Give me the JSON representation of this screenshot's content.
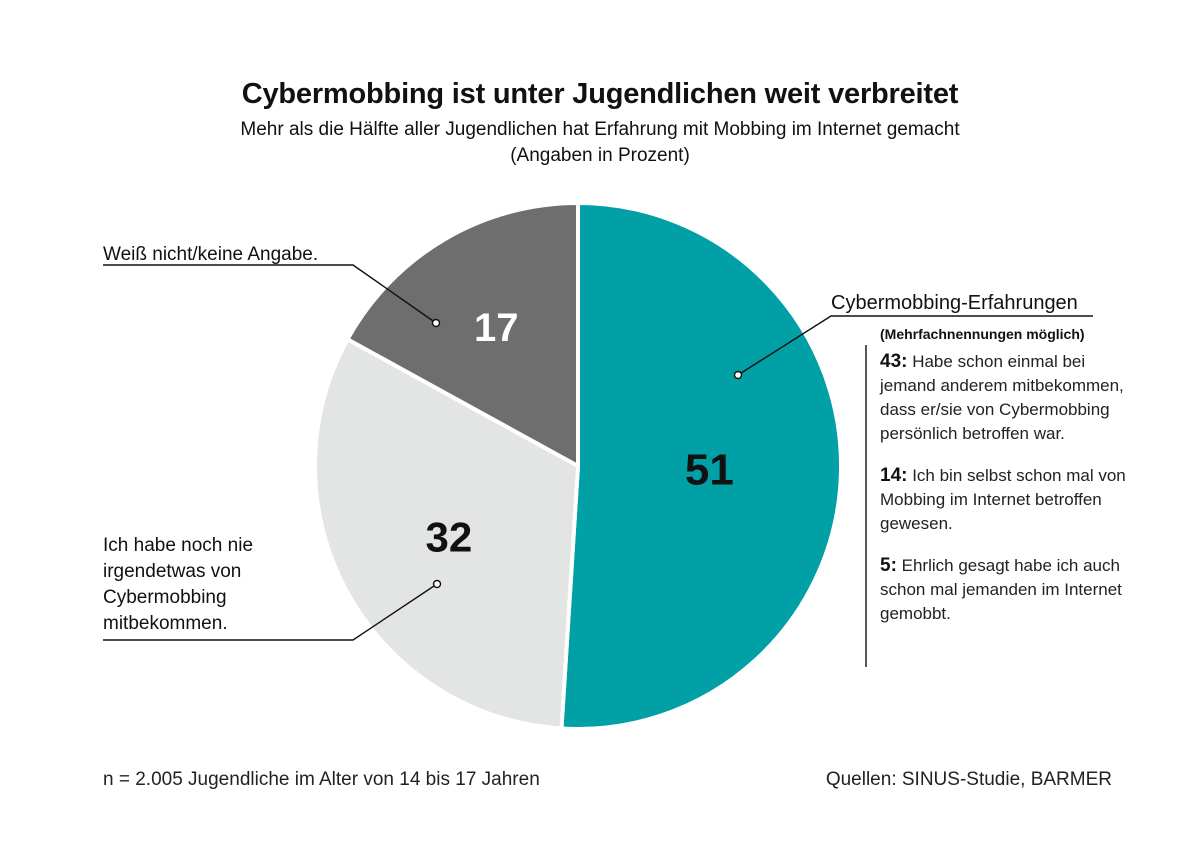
{
  "header": {
    "title": "Cybermobbing ist unter Jugendlichen weit verbreitet",
    "subtitle": "Mehr als die Hälfte aller Jugendlichen hat Erfahrung mit Mobbing im Internet gemacht",
    "unit_note": "(Angaben in Prozent)"
  },
  "chart_data": {
    "type": "pie",
    "title": "Cybermobbing ist unter Jugendlichen weit verbreitet",
    "subtitle": "Mehr als die Hälfte aller Jugendlichen hat Erfahrung mit Mobbing im Internet gemacht",
    "unit": "(Angaben in Prozent)",
    "slices": [
      {
        "label": "Cybermobbing-Erfahrungen",
        "value": 51,
        "color": "#00a0a6"
      },
      {
        "label": "Ich habe noch nie irgendetwas von Cybermobbing mitbekommen.",
        "value": 32,
        "color": "#e3e4e4"
      },
      {
        "label": "Weiß nicht/keine Angabe.",
        "value": 17,
        "color": "#6e6e6e"
      }
    ],
    "breakdown": {
      "parent": "Cybermobbing-Erfahrungen",
      "note": "(Mehrfachnennungen möglich)",
      "items": [
        {
          "value": 43,
          "text": "Habe schon einmal bei jemand anderem mitbekommen, dass er/sie von Cybermobbing persönlich betroffen war."
        },
        {
          "value": 14,
          "text": "Ich bin selbst schon mal von Mobbing im Internet betroffen gewesen."
        },
        {
          "value": 5,
          "text": "Ehrlich gesagt habe ich auch schon mal jemanden im Internet gemobbt."
        }
      ]
    }
  },
  "labels": {
    "unknown": "Weiß nicht/keine Angabe.",
    "never": "Ich habe noch nie irgendetwas von Cybermobbing mitbekommen.",
    "cyber": "Cybermobbing-Erfahrungen",
    "multi": "(Mehrfachnennungen möglich)"
  },
  "details": [
    {
      "num": "43:",
      "text": "Habe schon einmal bei jemand anderem mitbekommen, dass er/sie von Cybermobbing persönlich betroffen war."
    },
    {
      "num": "14:",
      "text": "Ich bin selbst schon mal von Mobbing im Internet betroffen gewesen."
    },
    {
      "num": "5:",
      "text": "Ehrlich gesagt habe ich auch schon mal jemanden im Internet gemobbt."
    }
  ],
  "footer": {
    "sample": "n = 2.005 Jugendliche im Alter von 14 bis 17 Jahren",
    "source": "Quellen: SINUS-Studie, BARMER"
  }
}
